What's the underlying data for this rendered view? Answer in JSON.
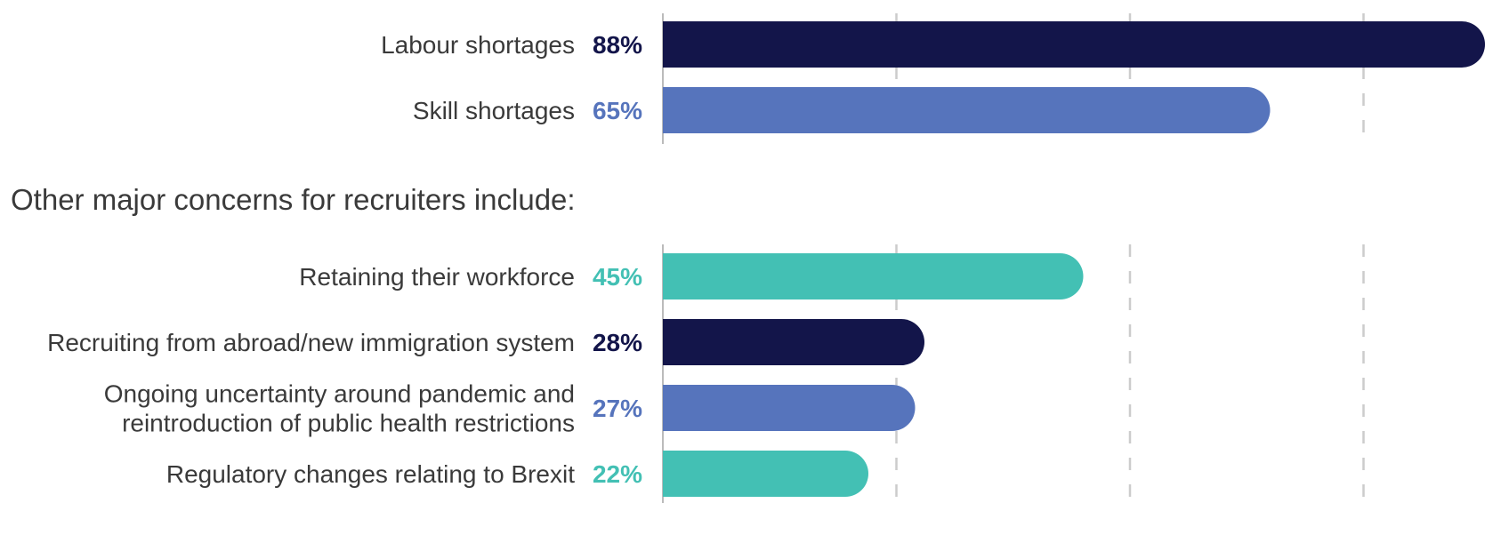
{
  "colors": {
    "navy": "#13154a",
    "blue": "#5674bc",
    "teal": "#43c0b4",
    "grid": "#cccccc",
    "axis": "#bbbbbb"
  },
  "section_heading": "Other major concerns for recruiters include:",
  "chart_data": [
    {
      "type": "bar",
      "orientation": "horizontal",
      "xlim": [
        0,
        100
      ],
      "grid": true,
      "categories": [
        "Labour shortages",
        "Skill shortages"
      ],
      "values": [
        88,
        65
      ],
      "value_labels": [
        "88%",
        "65%"
      ],
      "colors": [
        "#13154a",
        "#5674bc"
      ]
    },
    {
      "type": "bar",
      "orientation": "horizontal",
      "xlim": [
        0,
        100
      ],
      "grid": true,
      "categories": [
        "Retaining their workforce",
        "Recruiting from abroad/new immigration system",
        "Ongoing uncertainty around pandemic and reintroduction of public health restrictions",
        "Regulatory changes relating to Brexit"
      ],
      "category_lines": [
        [
          "Retaining their workforce"
        ],
        [
          "Recruiting from abroad/new immigration system"
        ],
        [
          "Ongoing uncertainty around pandemic and",
          "reintroduction of public health restrictions"
        ],
        [
          "Regulatory changes relating to Brexit"
        ]
      ],
      "values": [
        45,
        28,
        27,
        22
      ],
      "value_labels": [
        "45%",
        "28%",
        "27%",
        "22%"
      ],
      "colors": [
        "#43c0b4",
        "#13154a",
        "#5674bc",
        "#43c0b4"
      ]
    }
  ]
}
